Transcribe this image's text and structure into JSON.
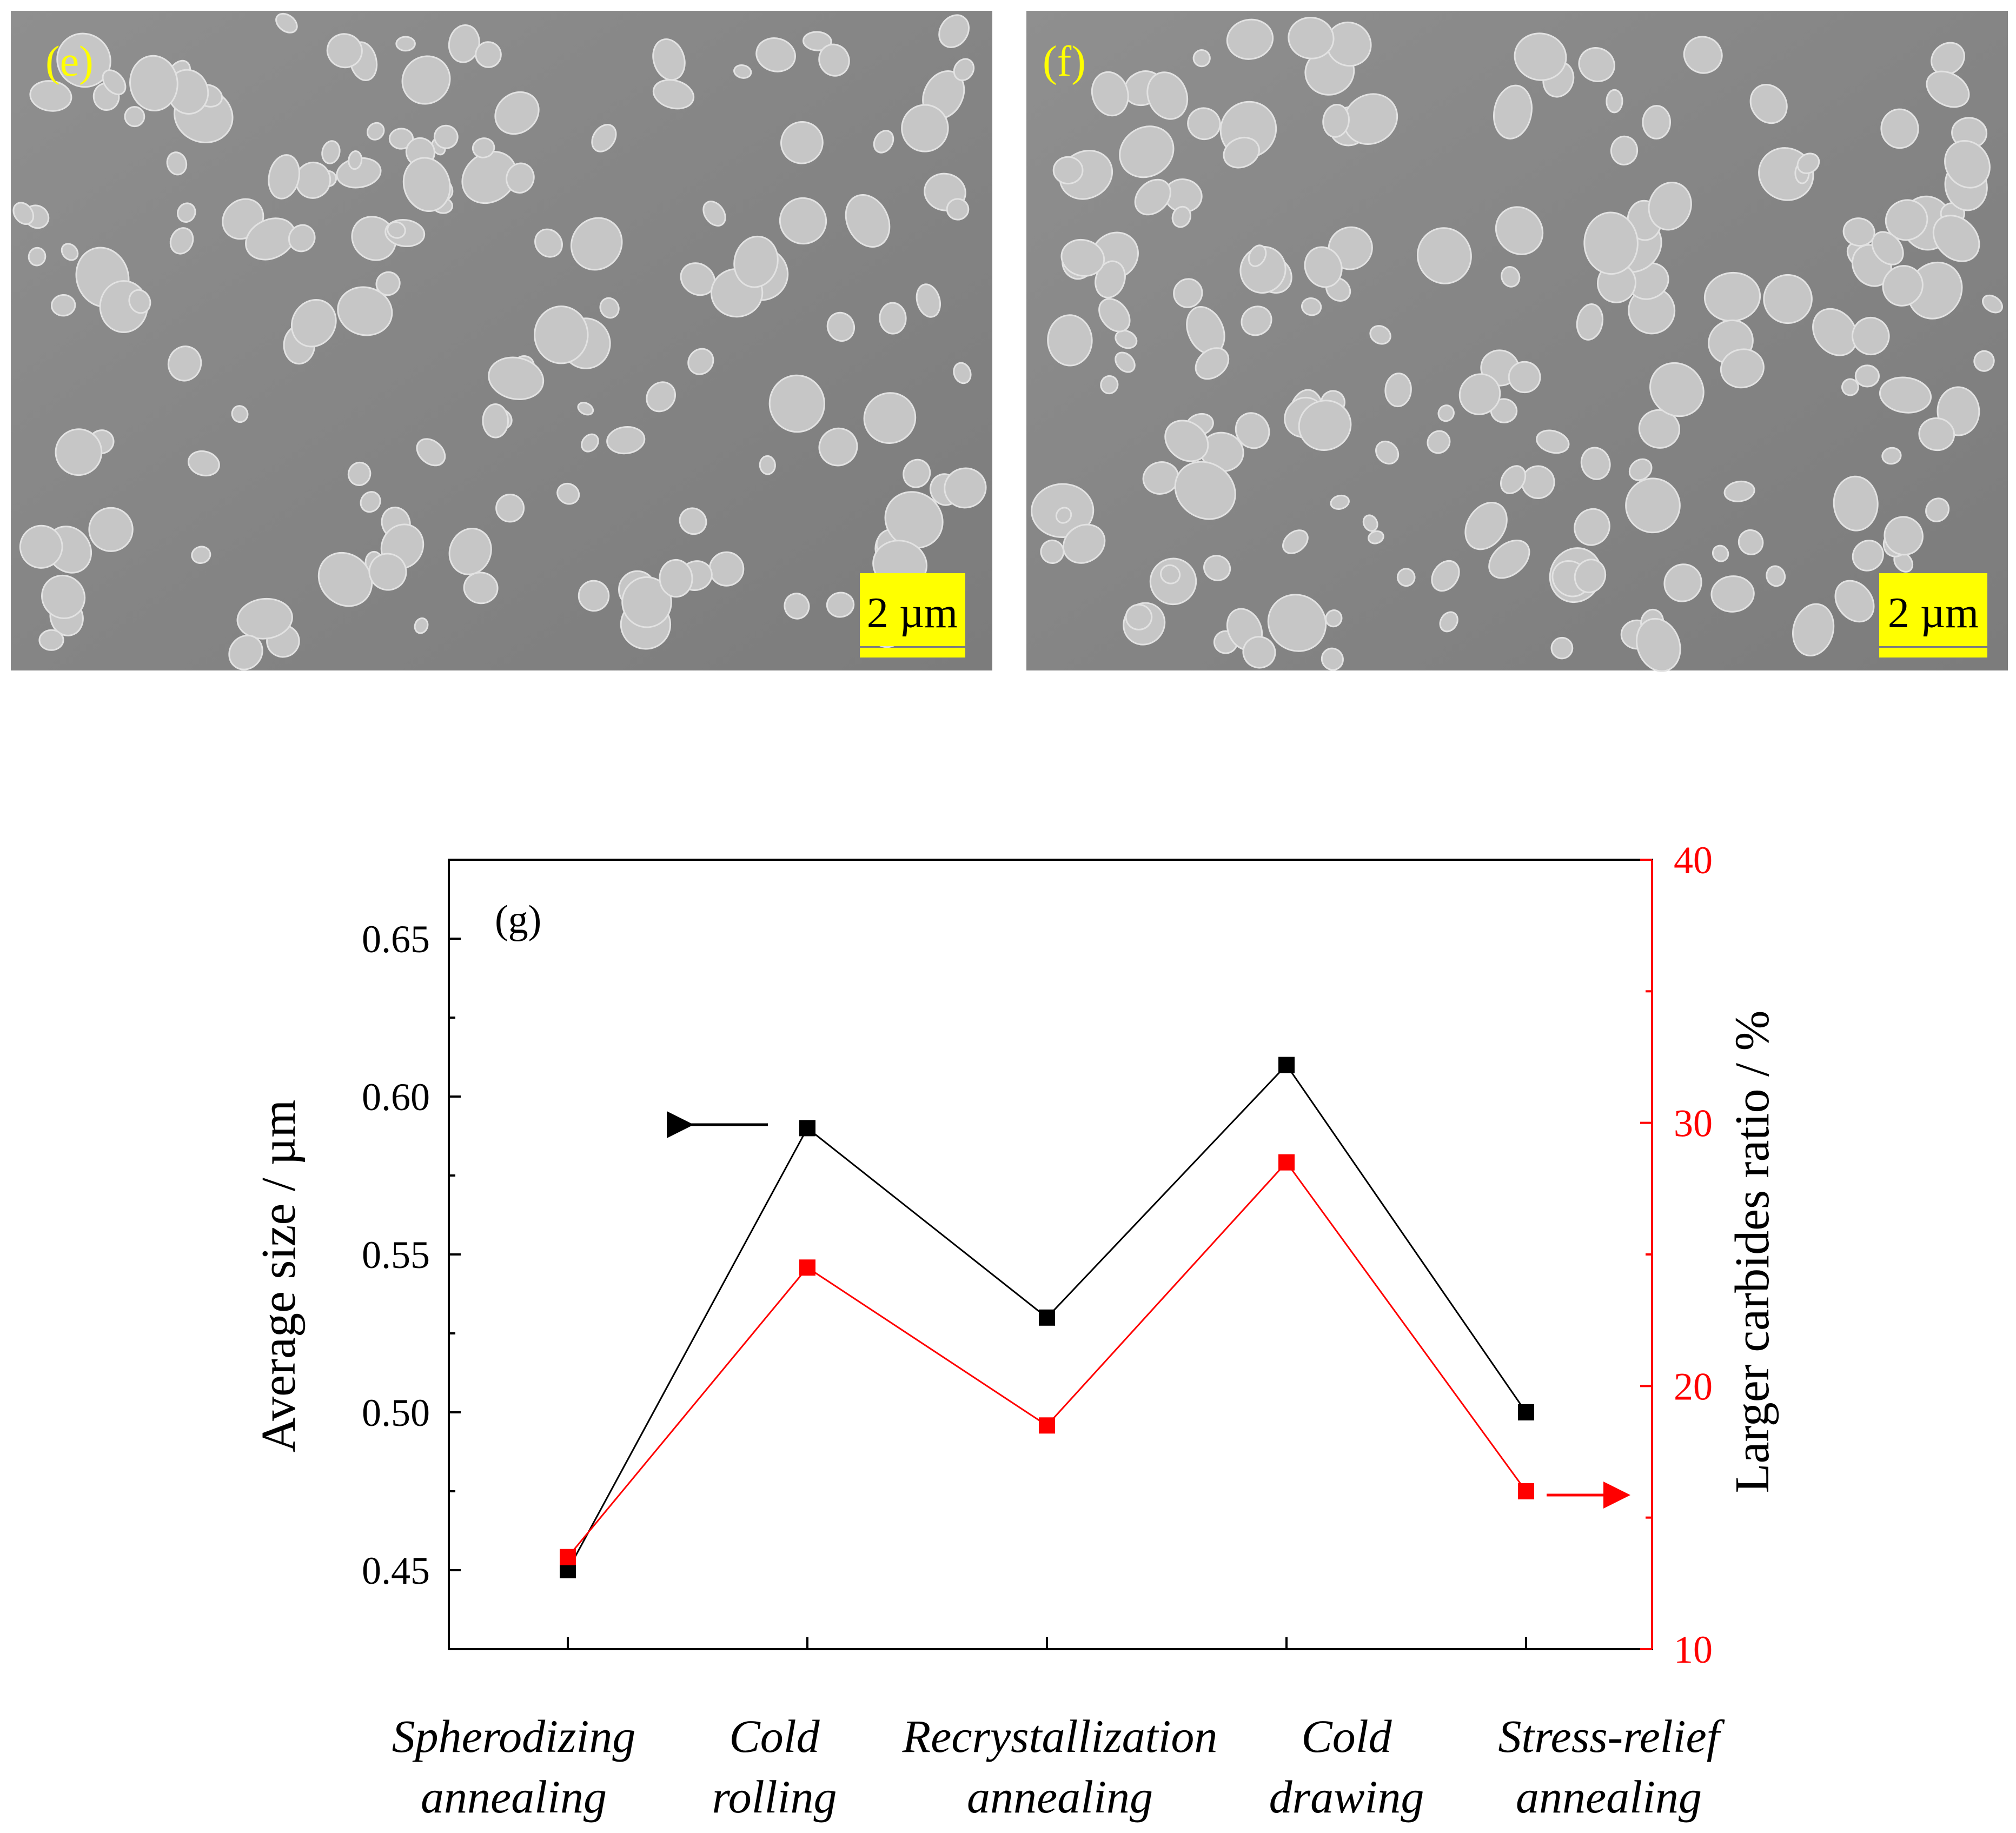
{
  "panels": {
    "e": {
      "label": "(e)",
      "scale_bar": "2 µm"
    },
    "f": {
      "label": "(f)",
      "scale_bar": "2 µm"
    }
  },
  "colors": {
    "label_yellow": "#ffff00",
    "sem_background": "#8a8a8a",
    "particle": "#c9c9c9",
    "series_size": "#000000",
    "series_ratio": "#ff0000"
  },
  "chart_data": {
    "type": "line",
    "panel_label": "(g)",
    "categories": [
      [
        "Spherodizing",
        "annealing"
      ],
      [
        "Cold",
        "rolling"
      ],
      [
        "Recrystallization",
        "annealing"
      ],
      [
        "Cold",
        "drawing"
      ],
      [
        "Stress-relief",
        "annealing"
      ]
    ],
    "series": [
      {
        "axis": "left",
        "color": "#000000",
        "values": [
          0.45,
          0.59,
          0.53,
          0.61,
          0.5
        ]
      },
      {
        "axis": "right",
        "color": "#ff0000",
        "values": [
          13.5,
          24.5,
          18.5,
          28.5,
          16.0
        ]
      }
    ],
    "ylabel_left": "Average size / µm",
    "ylabel_right": "Larger  carbides ratio / %",
    "ylim_left": [
      0.425,
      0.675
    ],
    "ylim_right": [
      10,
      40
    ],
    "yticks_left": [
      "0.45",
      "0.50",
      "0.55",
      "0.60",
      "0.65"
    ],
    "yticks_right": [
      "10",
      "20",
      "30",
      "40"
    ],
    "grid": false
  }
}
